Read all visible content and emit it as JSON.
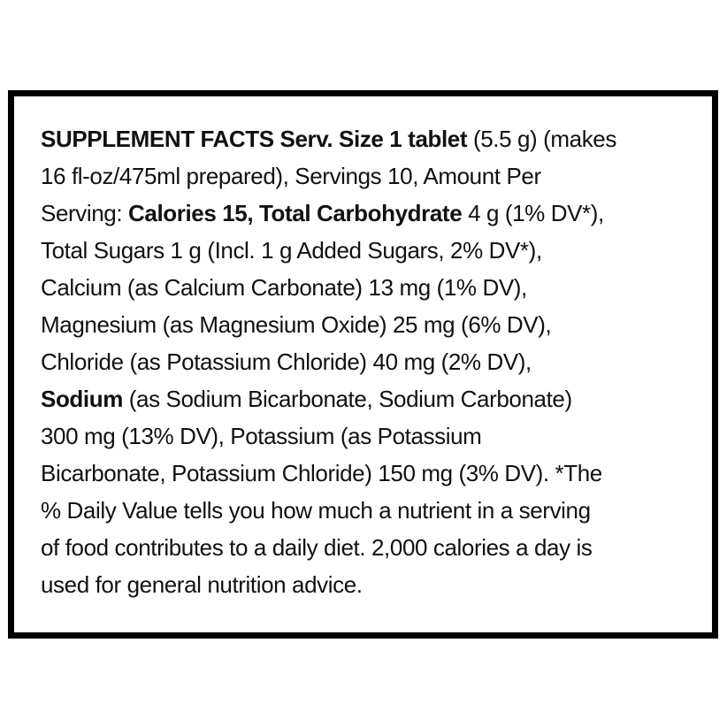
{
  "label": {
    "title": "SUPPLEMENT FACTS",
    "serving_size": "1 tablet",
    "serving_weight": "5.5 g",
    "makes": "16 fl-oz/475ml prepared",
    "servings": "10",
    "nutrients": [
      {
        "name": "Calories",
        "amount": "15",
        "dv": ""
      },
      {
        "name": "Total Carbohydrate",
        "amount": "4 g",
        "dv": "1% DV*"
      },
      {
        "name": "Total Sugars",
        "amount": "1 g",
        "dv": ""
      },
      {
        "name": "Added Sugars",
        "amount": "1 g",
        "dv": "2% DV*"
      },
      {
        "name": "Calcium (as Calcium Carbonate)",
        "amount": "13 mg",
        "dv": "1% DV"
      },
      {
        "name": "Magnesium (as Magnesium Oxide)",
        "amount": "25 mg",
        "dv": "6% DV"
      },
      {
        "name": "Chloride (as Potassium Chloride)",
        "amount": "40 mg",
        "dv": "2% DV"
      },
      {
        "name": "Sodium (as Sodium Bicarbonate, Sodium Carbonate)",
        "amount": "300 mg",
        "dv": "13% DV"
      },
      {
        "name": "Potassium (as Potassium Bicarbonate, Potassium Chloride)",
        "amount": "150 mg",
        "dv": "3% DV"
      }
    ],
    "footnote": "*The % Daily Value tells you how much a nutrient in a serving of food contributes to a daily diet. 2,000 calories a day is used for general nutrition advice.",
    "colors": {
      "border": "#000000",
      "text": "#111111",
      "background": "#ffffff"
    },
    "lines": [
      {
        "segments": [
          {
            "text": "SUPPLEMENT FACTS Serv. Size 1 tablet"
          },
          {
            "text": " (5.5 g) (makes"
          }
        ]
      },
      {
        "segments": [
          {
            "text": "16 fl-oz/475ml prepared), Servings 10, Amount Per"
          }
        ]
      },
      {
        "segments": [
          {
            "text": "Serving: "
          },
          {
            "text": "Calories 15, Total Carbohydrate"
          },
          {
            "text": " 4 g (1% DV*),"
          }
        ]
      },
      {
        "segments": [
          {
            "text": "Total Sugars 1 g (Incl. 1 g Added Sugars, 2% DV*),"
          }
        ]
      },
      {
        "segments": [
          {
            "text": "Calcium (as Calcium Carbonate) 13 mg (1% DV),"
          }
        ]
      },
      {
        "segments": [
          {
            "text": "Magnesium (as Magnesium Oxide) 25 mg (6% DV),"
          }
        ]
      },
      {
        "segments": [
          {
            "text": "Chloride (as Potassium Chloride) 40 mg (2% DV),"
          }
        ]
      },
      {
        "segments": [
          {
            "text": "Sodium"
          },
          {
            "text": " (as Sodium Bicarbonate, Sodium Carbonate)"
          }
        ]
      },
      {
        "segments": [
          {
            "text": "300 mg (13% DV), Potassium (as Potassium"
          }
        ]
      },
      {
        "segments": [
          {
            "text": "Bicarbonate, Potassium Chloride) 150 mg (3% DV). *The"
          }
        ]
      },
      {
        "segments": [
          {
            "text": "% Daily Value tells you how much a nutrient in a serving"
          }
        ]
      },
      {
        "segments": [
          {
            "text": "of food contributes to a daily diet. 2,000 calories a day is"
          }
        ]
      },
      {
        "segments": [
          {
            "text": "used for general nutrition advice."
          }
        ]
      }
    ]
  }
}
